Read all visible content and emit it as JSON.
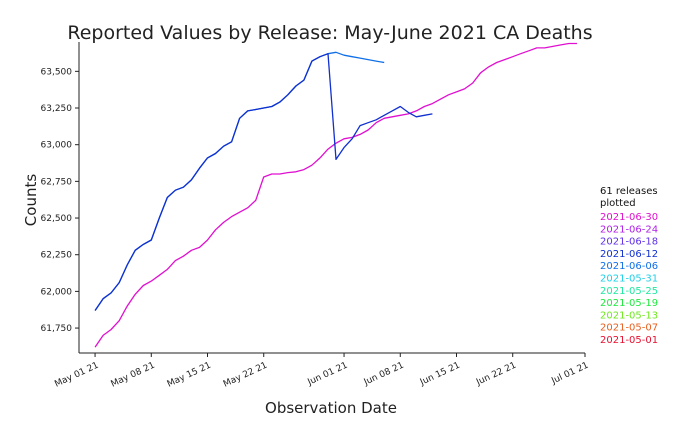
{
  "chart_data": {
    "type": "line",
    "title": "Reported Values by Release: May-June 2021 CA Deaths",
    "xlabel": "Observation Date",
    "ylabel": "Counts",
    "xlim": [
      "2021-04-29",
      "2021-07-01"
    ],
    "ylim": [
      61580,
      63700
    ],
    "x_ticks": [
      {
        "value": "2021-05-01",
        "label": "May 01 21"
      },
      {
        "value": "2021-05-08",
        "label": "May 08 21"
      },
      {
        "value": "2021-05-15",
        "label": "May 15 21"
      },
      {
        "value": "2021-05-22",
        "label": "May 22 21"
      },
      {
        "value": "2021-06-01",
        "label": "Jun 01 21"
      },
      {
        "value": "2021-06-08",
        "label": "Jun 08 21"
      },
      {
        "value": "2021-06-15",
        "label": "Jun 15 21"
      },
      {
        "value": "2021-06-22",
        "label": "Jun 22 21"
      },
      {
        "value": "2021-07-01",
        "label": "Jul 01 21"
      }
    ],
    "y_ticks": [
      {
        "value": 61750,
        "label": "61,750"
      },
      {
        "value": 62000,
        "label": "62,000"
      },
      {
        "value": 62250,
        "label": "62,250"
      },
      {
        "value": 62500,
        "label": "62,500"
      },
      {
        "value": 62750,
        "label": "62,750"
      },
      {
        "value": 63000,
        "label": "63,000"
      },
      {
        "value": 63250,
        "label": "63,250"
      },
      {
        "value": 63500,
        "label": "63,500"
      }
    ],
    "grid": false,
    "legend": {
      "placement": "right",
      "title": "61 releases plotted",
      "entries": [
        {
          "name": "2021-06-30",
          "color": "#e010d0"
        },
        {
          "name": "2021-06-24",
          "color": "#b020e8"
        },
        {
          "name": "2021-06-18",
          "color": "#6030e8"
        },
        {
          "name": "2021-06-12",
          "color": "#1030d0"
        },
        {
          "name": "2021-06-06",
          "color": "#1070e8"
        },
        {
          "name": "2021-05-31",
          "color": "#20d0e8"
        },
        {
          "name": "2021-05-25",
          "color": "#20e8a0"
        },
        {
          "name": "2021-05-19",
          "color": "#20e840"
        },
        {
          "name": "2021-05-13",
          "color": "#70e820"
        },
        {
          "name": "2021-05-07",
          "color": "#e86020"
        },
        {
          "name": "2021-05-01",
          "color": "#e81030"
        }
      ]
    },
    "series": [
      {
        "color": "#e010d0",
        "x": [
          "2021-05-01",
          "2021-05-02",
          "2021-05-03",
          "2021-05-04",
          "2021-05-05",
          "2021-05-06",
          "2021-05-07",
          "2021-05-08",
          "2021-05-09",
          "2021-05-10",
          "2021-05-11",
          "2021-05-12",
          "2021-05-13",
          "2021-05-14",
          "2021-05-15",
          "2021-05-16",
          "2021-05-17",
          "2021-05-18",
          "2021-05-19",
          "2021-05-20",
          "2021-05-21",
          "2021-05-22",
          "2021-05-23",
          "2021-05-24",
          "2021-05-25",
          "2021-05-26",
          "2021-05-27",
          "2021-05-28",
          "2021-05-29",
          "2021-05-30",
          "2021-05-31",
          "2021-06-01",
          "2021-06-02",
          "2021-06-03",
          "2021-06-04",
          "2021-06-05",
          "2021-06-06",
          "2021-06-07",
          "2021-06-08",
          "2021-06-09",
          "2021-06-10",
          "2021-06-11",
          "2021-06-12",
          "2021-06-13",
          "2021-06-14",
          "2021-06-15",
          "2021-06-16",
          "2021-06-17",
          "2021-06-18",
          "2021-06-19",
          "2021-06-20",
          "2021-06-21",
          "2021-06-22",
          "2021-06-23",
          "2021-06-24",
          "2021-06-25",
          "2021-06-26",
          "2021-06-27",
          "2021-06-28",
          "2021-06-29",
          "2021-06-30"
        ],
        "values": [
          61620,
          61700,
          61740,
          61800,
          61900,
          61980,
          62040,
          62070,
          62110,
          62150,
          62210,
          62240,
          62280,
          62300,
          62350,
          62420,
          62470,
          62510,
          62540,
          62570,
          62620,
          62780,
          62800,
          62800,
          62810,
          62815,
          62830,
          62860,
          62910,
          62970,
          63010,
          63040,
          63050,
          63070,
          63100,
          63150,
          63180,
          63190,
          63200,
          63210,
          63230,
          63260,
          63280,
          63310,
          63340,
          63360,
          63380,
          63420,
          63490,
          63530,
          63560,
          63580,
          63600,
          63620,
          63640,
          63660,
          63660,
          63670,
          63680,
          63690,
          63690
        ]
      },
      {
        "color": "#1070e8",
        "x": [
          "2021-05-01",
          "2021-05-02",
          "2021-05-03",
          "2021-05-04",
          "2021-05-05",
          "2021-05-06",
          "2021-05-07",
          "2021-05-08",
          "2021-05-09",
          "2021-05-10",
          "2021-05-11",
          "2021-05-12",
          "2021-05-13",
          "2021-05-14",
          "2021-05-15",
          "2021-05-16",
          "2021-05-17",
          "2021-05-18",
          "2021-05-19",
          "2021-05-20",
          "2021-05-21",
          "2021-05-22",
          "2021-05-23",
          "2021-05-24",
          "2021-05-25",
          "2021-05-26",
          "2021-05-27",
          "2021-05-28",
          "2021-05-29",
          "2021-05-30",
          "2021-05-31",
          "2021-06-01",
          "2021-06-02",
          "2021-06-03",
          "2021-06-04",
          "2021-06-05",
          "2021-06-06"
        ],
        "values": [
          61870,
          61950,
          61990,
          62060,
          62180,
          62280,
          62320,
          62350,
          62500,
          62640,
          62690,
          62710,
          62760,
          62840,
          62910,
          62940,
          62990,
          63020,
          63180,
          63230,
          63240,
          63250,
          63260,
          63290,
          63340,
          63400,
          63440,
          63570,
          63600,
          63620,
          63630,
          63610,
          63600,
          63590,
          63580,
          63570,
          63560
        ]
      },
      {
        "color": "#1030d0",
        "x": [
          "2021-05-01",
          "2021-05-02",
          "2021-05-03",
          "2021-05-04",
          "2021-05-05",
          "2021-05-06",
          "2021-05-07",
          "2021-05-08",
          "2021-05-09",
          "2021-05-10",
          "2021-05-11",
          "2021-05-12",
          "2021-05-13",
          "2021-05-14",
          "2021-05-15",
          "2021-05-16",
          "2021-05-17",
          "2021-05-18",
          "2021-05-19",
          "2021-05-20",
          "2021-05-21",
          "2021-05-22",
          "2021-05-23",
          "2021-05-24",
          "2021-05-25",
          "2021-05-26",
          "2021-05-27",
          "2021-05-28",
          "2021-05-29",
          "2021-05-30",
          "2021-05-31",
          "2021-06-01",
          "2021-06-02",
          "2021-06-03",
          "2021-06-04",
          "2021-06-05",
          "2021-06-06",
          "2021-06-07",
          "2021-06-08",
          "2021-06-09",
          "2021-06-10",
          "2021-06-11",
          "2021-06-12"
        ],
        "values": [
          61870,
          61950,
          61990,
          62060,
          62180,
          62280,
          62320,
          62350,
          62500,
          62640,
          62690,
          62710,
          62760,
          62840,
          62910,
          62940,
          62990,
          63020,
          63180,
          63230,
          63240,
          63250,
          63260,
          63290,
          63340,
          63400,
          63440,
          63570,
          63600,
          63620,
          62900,
          62980,
          63040,
          63130,
          63150,
          63170,
          63200,
          63230,
          63260,
          63220,
          63190,
          63200,
          63210
        ]
      }
    ]
  }
}
